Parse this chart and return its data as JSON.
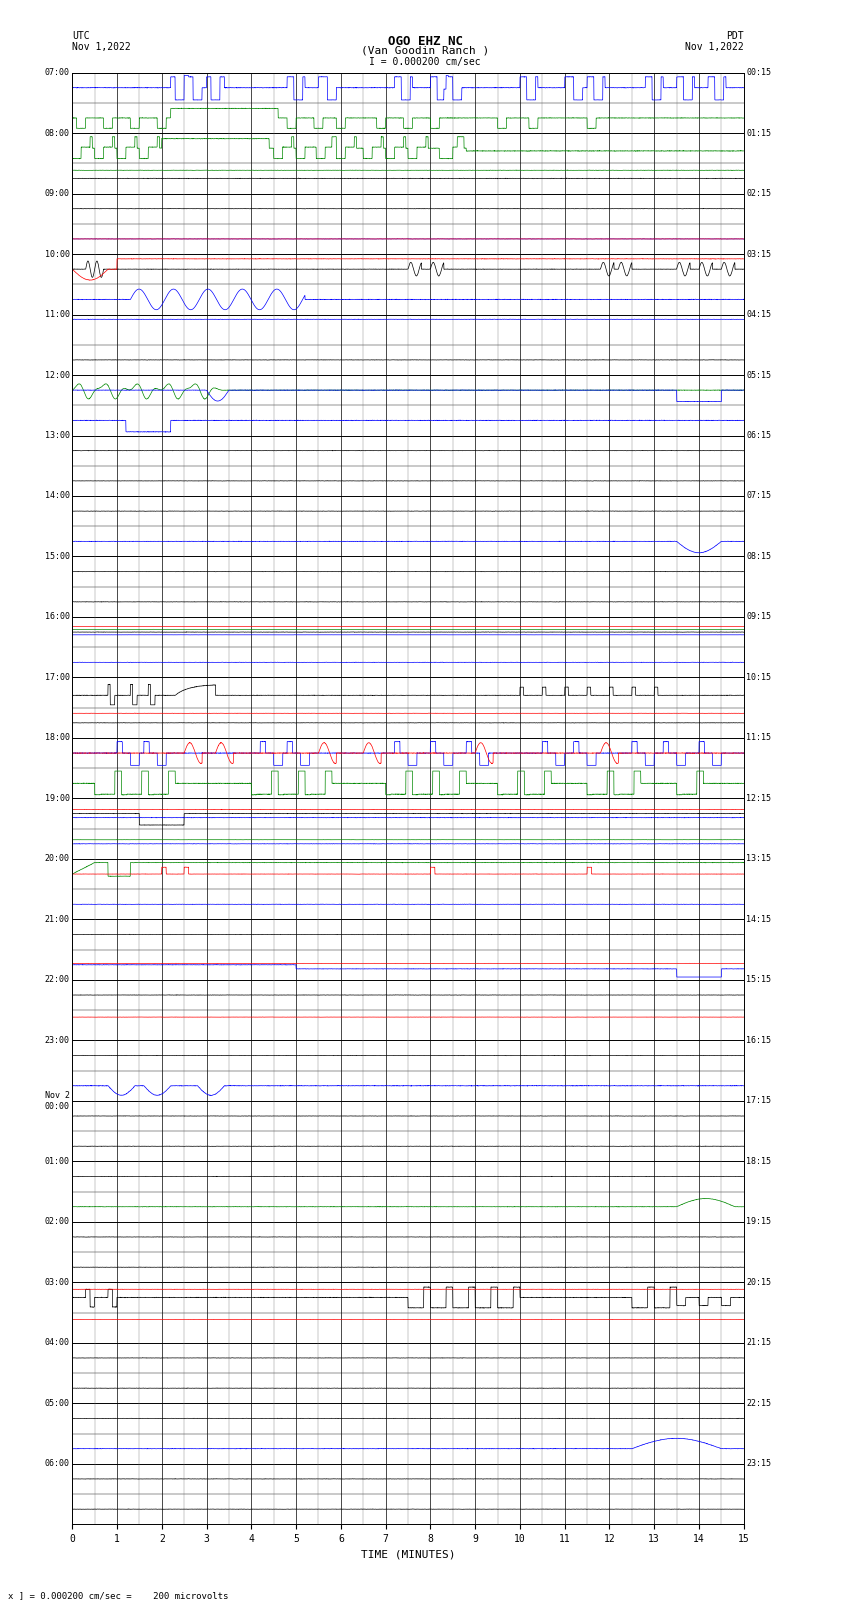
{
  "title_line1": "OGO EHZ NC",
  "title_line2": "(Van Goodin Ranch )",
  "scale_label": "I = 0.000200 cm/sec",
  "footer": "x ] = 0.000200 cm/sec =    200 microvolts",
  "xlabel": "TIME (MINUTES)",
  "xlim": [
    0,
    15
  ],
  "fig_width": 8.5,
  "fig_height": 16.13,
  "bg_color": "#ffffff",
  "grid_major_color": "#000000",
  "grid_minor_color": "#888888",
  "colors": {
    "black": "#000000",
    "red": "#ff0000",
    "green": "#008800",
    "blue": "#0000ff"
  },
  "left_labels": [
    "07:00",
    "",
    "08:00",
    "",
    "09:00",
    "",
    "10:00",
    "",
    "11:00",
    "",
    "12:00",
    "",
    "13:00",
    "",
    "14:00",
    "",
    "15:00",
    "",
    "16:00",
    "",
    "17:00",
    "",
    "18:00",
    "",
    "19:00",
    "",
    "20:00",
    "",
    "21:00",
    "",
    "22:00",
    "",
    "23:00",
    "",
    "Nov 2\n00:00",
    "",
    "01:00",
    "",
    "02:00",
    "",
    "03:00",
    "",
    "04:00",
    "",
    "05:00",
    "",
    "06:00",
    ""
  ],
  "right_labels": [
    "00:15",
    "",
    "01:15",
    "",
    "02:15",
    "",
    "03:15",
    "",
    "04:15",
    "",
    "05:15",
    "",
    "06:15",
    "",
    "07:15",
    "",
    "08:15",
    "",
    "09:15",
    "",
    "10:15",
    "",
    "11:15",
    "",
    "12:15",
    "",
    "13:15",
    "",
    "14:15",
    "",
    "15:15",
    "",
    "16:15",
    "",
    "17:15",
    "",
    "18:15",
    "",
    "19:15",
    "",
    "20:15",
    "",
    "21:15",
    "",
    "22:15",
    "",
    "23:15",
    ""
  ]
}
